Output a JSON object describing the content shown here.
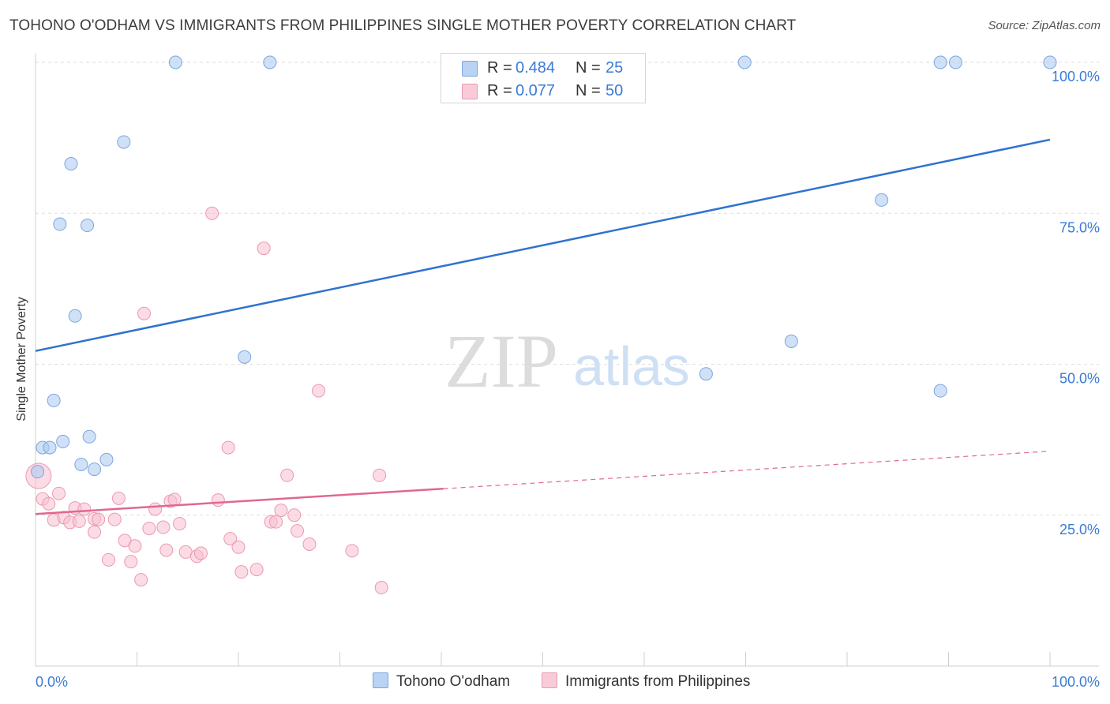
{
  "title": "TOHONO O'ODHAM VS IMMIGRANTS FROM PHILIPPINES SINGLE MOTHER POVERTY CORRELATION CHART",
  "source": "Source: ZipAtlas.com",
  "watermark": {
    "zip": "ZIP",
    "atlas": "atlas"
  },
  "legend": {
    "r_label": "R =",
    "n_label": "N =",
    "rows": [
      {
        "r": "0.484",
        "n": "25"
      },
      {
        "r": "0.077",
        "n": "50"
      }
    ]
  },
  "chart_data": {
    "type": "scatter",
    "ylabel": "Single Mother Poverty",
    "xlim": [
      0,
      100
    ],
    "ylim": [
      0,
      100
    ],
    "x_tick_labels": [
      {
        "value": 0,
        "label": "0.0%"
      },
      {
        "value": 100,
        "label": "100.0%"
      }
    ],
    "y_tick_labels": [
      {
        "value": 25,
        "label": "25.0%"
      },
      {
        "value": 50,
        "label": "50.0%"
      },
      {
        "value": 75,
        "label": "75.0%"
      },
      {
        "value": 100,
        "label": "100.0%"
      }
    ],
    "grid": true,
    "legend_position": "top-center",
    "series": [
      {
        "name": "Tohono O'odham",
        "color": "#a9c8f0",
        "edge": "#7aa6e0",
        "line_color": "#2f72cf",
        "trend": {
          "x0": 0,
          "y0": 52.2,
          "x1": 100,
          "y1": 87.2,
          "solid_until": 100
        },
        "points": [
          [
            13.8,
            100
          ],
          [
            23.1,
            100
          ],
          [
            69.9,
            100
          ],
          [
            89.2,
            100
          ],
          [
            90.7,
            100
          ],
          [
            100,
            100
          ],
          [
            8.7,
            86.8
          ],
          [
            3.5,
            83.2
          ],
          [
            83.4,
            77.2
          ],
          [
            2.4,
            73.2
          ],
          [
            5.1,
            73.0
          ],
          [
            3.9,
            58.0
          ],
          [
            20.6,
            51.2
          ],
          [
            74.5,
            53.8
          ],
          [
            66.1,
            48.4
          ],
          [
            89.2,
            45.6
          ],
          [
            1.8,
            44.0
          ],
          [
            0.7,
            36.2
          ],
          [
            1.4,
            36.2
          ],
          [
            2.7,
            37.2
          ],
          [
            5.3,
            38.0
          ],
          [
            7.0,
            34.2
          ],
          [
            4.5,
            33.4
          ],
          [
            5.8,
            32.6
          ],
          [
            0.2,
            32.2
          ]
        ]
      },
      {
        "name": "Immigrants from Philippines",
        "color": "#f7bfcf",
        "edge": "#ec98b2",
        "line_color": "#e06890",
        "trend": {
          "x0": 0,
          "y0": 25.2,
          "x1": 100,
          "y1": 35.6,
          "solid_until": 40.2
        },
        "points": [
          [
            17.4,
            75.0
          ],
          [
            22.5,
            69.2
          ],
          [
            10.7,
            58.4
          ],
          [
            27.9,
            45.6
          ],
          [
            19.0,
            36.2
          ],
          [
            24.8,
            31.6
          ],
          [
            33.9,
            31.6
          ],
          [
            0.3,
            31.5
          ],
          [
            0.7,
            27.7
          ],
          [
            1.3,
            26.9
          ],
          [
            2.3,
            28.6
          ],
          [
            8.2,
            27.8
          ],
          [
            13.3,
            27.3
          ],
          [
            13.7,
            27.6
          ],
          [
            18.0,
            27.5
          ],
          [
            3.9,
            26.2
          ],
          [
            4.8,
            26.0
          ],
          [
            11.8,
            26.0
          ],
          [
            24.2,
            25.8
          ],
          [
            25.5,
            25.0
          ],
          [
            1.8,
            24.2
          ],
          [
            2.8,
            24.6
          ],
          [
            3.4,
            23.8
          ],
          [
            4.3,
            24.0
          ],
          [
            5.8,
            24.4
          ],
          [
            6.2,
            24.3
          ],
          [
            7.8,
            24.3
          ],
          [
            8.8,
            20.8
          ],
          [
            9.8,
            19.9
          ],
          [
            11.2,
            22.8
          ],
          [
            12.6,
            23.0
          ],
          [
            14.2,
            23.6
          ],
          [
            23.2,
            23.9
          ],
          [
            23.7,
            23.9
          ],
          [
            25.8,
            22.4
          ],
          [
            5.8,
            22.2
          ],
          [
            12.9,
            19.2
          ],
          [
            14.8,
            18.9
          ],
          [
            15.9,
            18.2
          ],
          [
            16.3,
            18.7
          ],
          [
            19.2,
            21.1
          ],
          [
            20.0,
            19.7
          ],
          [
            31.2,
            19.1
          ],
          [
            7.2,
            17.6
          ],
          [
            9.4,
            17.3
          ],
          [
            10.4,
            14.3
          ],
          [
            20.3,
            15.6
          ],
          [
            21.8,
            16.0
          ],
          [
            34.1,
            13.0
          ],
          [
            27.0,
            20.2
          ]
        ]
      }
    ]
  }
}
